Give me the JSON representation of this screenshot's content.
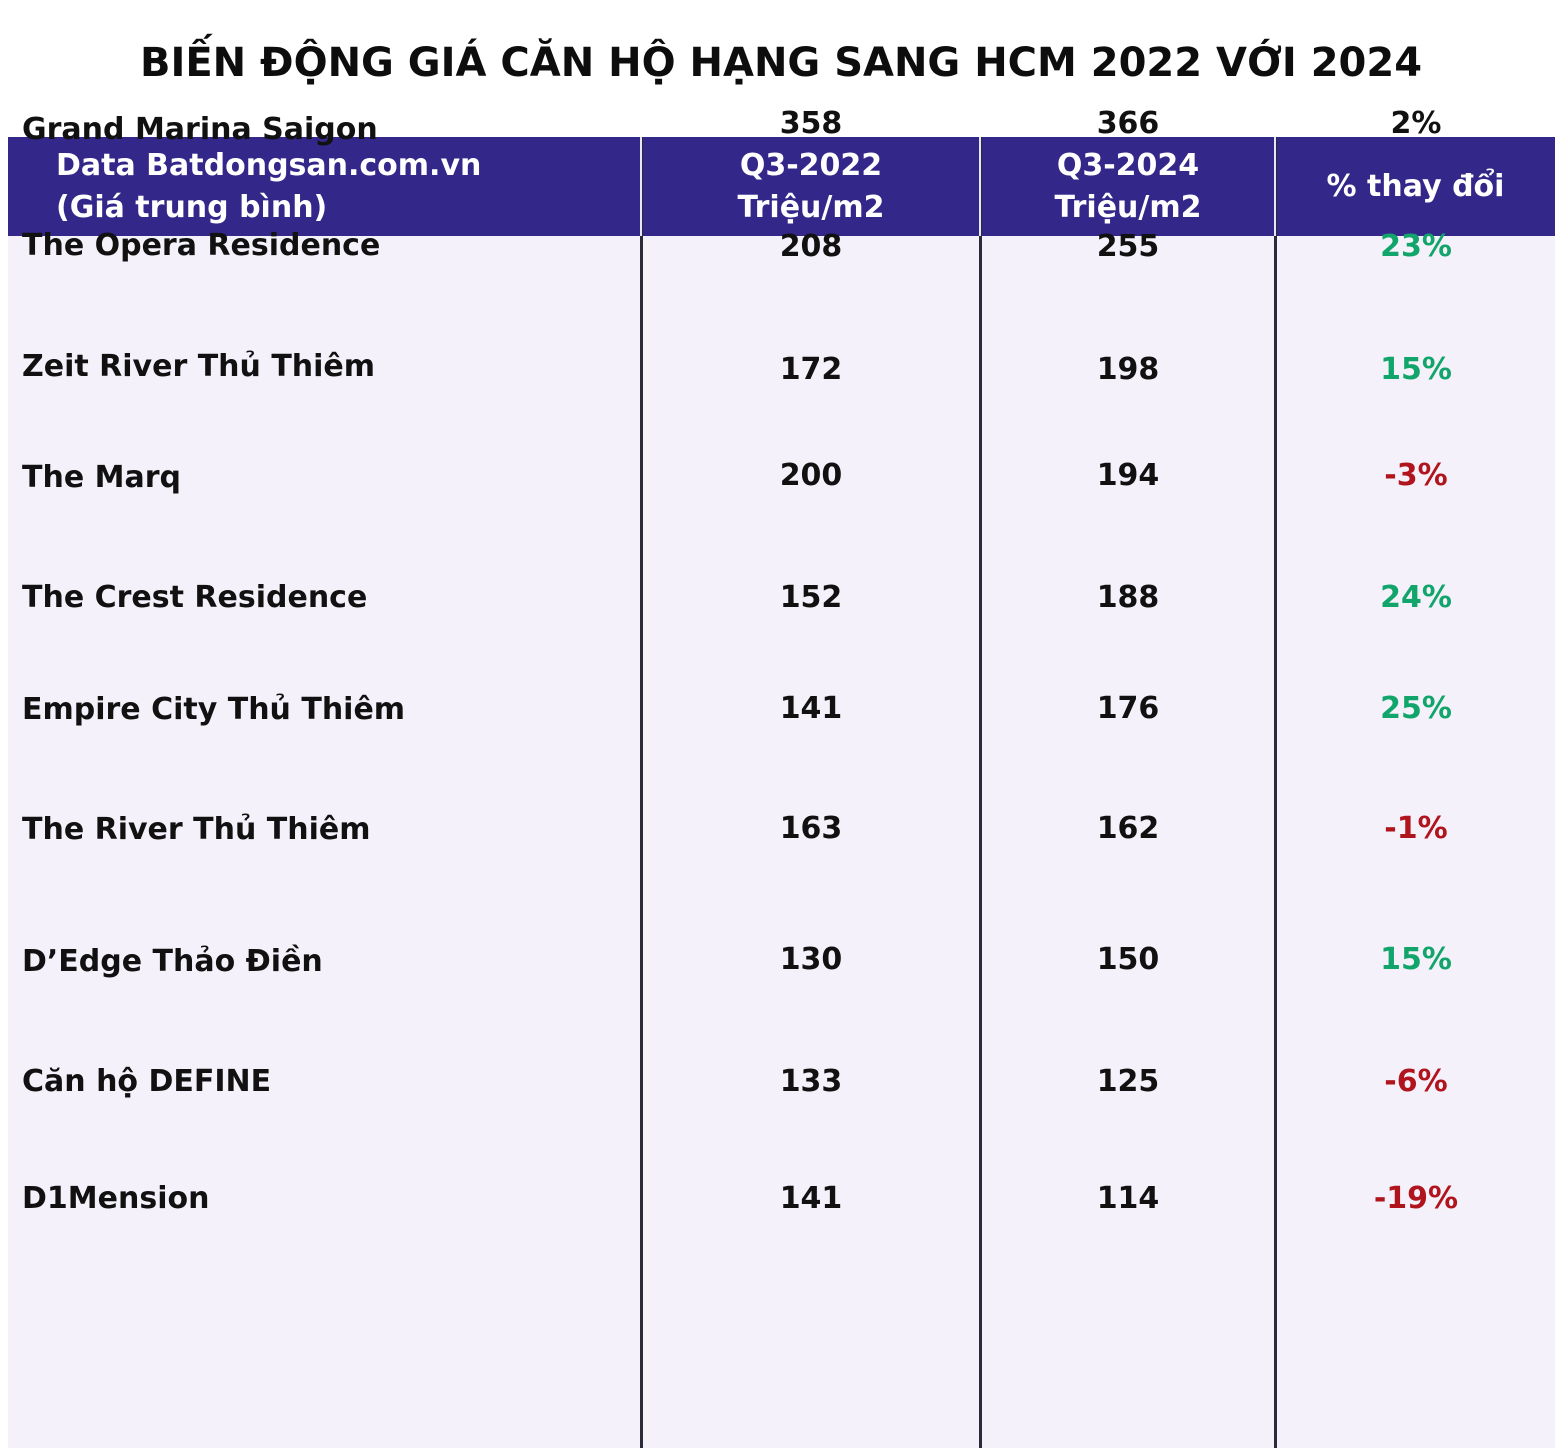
{
  "title": "BIẾN ĐỘNG GIÁ CĂN HỘ HẠNG SANG HCM 2022 VỚI 2024",
  "header": {
    "col_project_line1": "Data Batdongsan.com.vn",
    "col_project_line2": "(Giá trung bình)",
    "col_2022_line1": "Q3-2022",
    "col_2022_line2": "Triệu/m2",
    "col_2024_line1": "Q3-2024",
    "col_2024_line2": "Triệu/m2",
    "col_change": "% thay đổi"
  },
  "colors": {
    "header_bg": "#34278a",
    "table_bg": "#f4f1fa",
    "increase": "#12a56b",
    "decrease": "#b0141c",
    "neutral": "#111111"
  },
  "chart_data": {
    "type": "table",
    "title": "BIẾN ĐỘNG GIÁ CĂN HỘ HẠNG SANG HCM 2022 VỚI 2024",
    "columns": [
      "Data Batdongsan.com.vn (Giá trung bình)",
      "Q3-2022 Triệu/m2",
      "Q3-2024 Triệu/m2",
      "% thay đổi"
    ],
    "rows": [
      {
        "name": "Grand Marina Saigon",
        "q3_2022": "358",
        "q3_2024": "366",
        "change": "2%",
        "trend": "neutral"
      },
      {
        "name": "The Opera Residence",
        "q3_2022": "208",
        "q3_2024": "255",
        "change": "23%",
        "trend": "up"
      },
      {
        "name": "Zeit River Thủ Thiêm",
        "q3_2022": "172",
        "q3_2024": "198",
        "change": "15%",
        "trend": "up"
      },
      {
        "name": "The Marq",
        "q3_2022": "200",
        "q3_2024": "194",
        "change": "-3%",
        "trend": "down"
      },
      {
        "name": "The Crest Residence",
        "q3_2022": "152",
        "q3_2024": "188",
        "change": "24%",
        "trend": "up"
      },
      {
        "name": "Empire City Thủ Thiêm",
        "q3_2022": "141",
        "q3_2024": "176",
        "change": "25%",
        "trend": "up"
      },
      {
        "name": "The River Thủ Thiêm",
        "q3_2022": "163",
        "q3_2024": "162",
        "change": "-1%",
        "trend": "down"
      },
      {
        "name": "D’Edge Thảo Điền",
        "q3_2022": "130",
        "q3_2024": "150",
        "change": "15%",
        "trend": "up"
      },
      {
        "name": "Căn hộ DEFINE",
        "q3_2022": "133",
        "q3_2024": "125",
        "change": "-6%",
        "trend": "down"
      },
      {
        "name": "D1Mension",
        "q3_2022": "141",
        "q3_2024": "114",
        "change": "-19%",
        "trend": "down"
      }
    ]
  }
}
